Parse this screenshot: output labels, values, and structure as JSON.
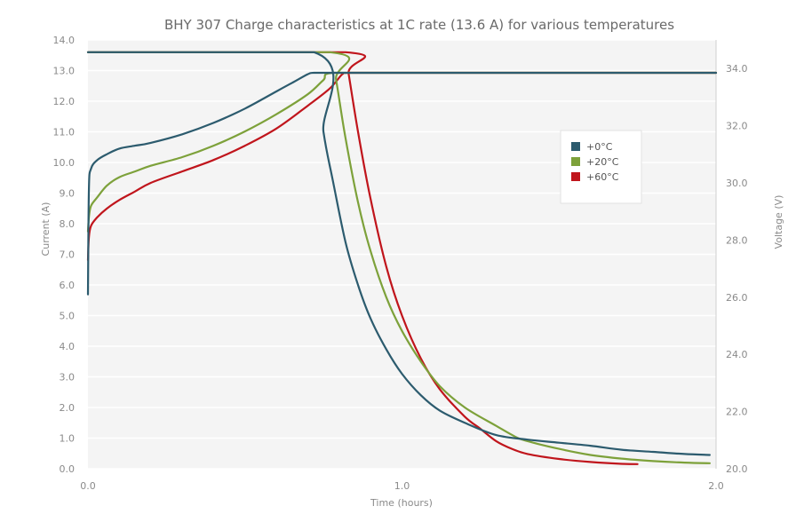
{
  "chart_data": {
    "type": "line",
    "title": "BHY 307 Charge characteristics at 1C rate (13.6 A) for various temperatures",
    "xlabel": "Time (hours)",
    "ylabel_left": "Current (A)",
    "ylabel_right": "Voltage (V)",
    "xlim": [
      0,
      2.0
    ],
    "ylim_left": [
      0,
      14.0
    ],
    "ylim_right": [
      20.0,
      35.0
    ],
    "x_ticks": [
      "0.0",
      "1.0",
      "2.0"
    ],
    "y_ticks_left": [
      "0.0",
      "1.0",
      "2.0",
      "3.0",
      "4.0",
      "5.0",
      "6.0",
      "7.0",
      "8.0",
      "9.0",
      "10.0",
      "11.0",
      "12.0",
      "13.0",
      "14.0"
    ],
    "y_ticks_right": [
      "20.0",
      "22.0",
      "24.0",
      "26.0",
      "28.0",
      "30.0",
      "32.0",
      "34.0"
    ],
    "grid": true,
    "legend_position": "right",
    "series": [
      {
        "name": "+0°C",
        "color": "#2c5b6e",
        "current": [
          [
            0,
            13.6
          ],
          [
            0.72,
            13.6
          ],
          [
            0.75,
            11.0
          ],
          [
            0.78,
            9.4
          ],
          [
            0.82,
            7.4
          ],
          [
            0.86,
            6.0
          ],
          [
            0.9,
            4.9
          ],
          [
            0.95,
            3.9
          ],
          [
            1.0,
            3.1
          ],
          [
            1.06,
            2.4
          ],
          [
            1.12,
            1.9
          ],
          [
            1.2,
            1.5
          ],
          [
            1.3,
            1.1
          ],
          [
            1.4,
            0.95
          ],
          [
            1.5,
            0.85
          ],
          [
            1.6,
            0.75
          ],
          [
            1.7,
            0.62
          ],
          [
            1.8,
            0.55
          ],
          [
            1.9,
            0.48
          ],
          [
            1.98,
            0.45
          ]
        ],
        "voltage": [
          [
            0,
            26.1
          ],
          [
            0.003,
            29.8
          ],
          [
            0.01,
            30.5
          ],
          [
            0.03,
            30.8
          ],
          [
            0.06,
            31.0
          ],
          [
            0.1,
            31.2
          ],
          [
            0.15,
            31.3
          ],
          [
            0.2,
            31.4
          ],
          [
            0.3,
            31.7
          ],
          [
            0.4,
            32.1
          ],
          [
            0.5,
            32.6
          ],
          [
            0.6,
            33.2
          ],
          [
            0.65,
            33.5
          ],
          [
            0.7,
            33.8
          ],
          [
            0.72,
            33.85
          ],
          [
            0.8,
            33.85
          ],
          [
            1.0,
            33.85
          ],
          [
            1.5,
            33.85
          ],
          [
            2.0,
            33.85
          ]
        ]
      },
      {
        "name": "+20°C",
        "color": "#7da13a",
        "current": [
          [
            0,
            13.6
          ],
          [
            0.77,
            13.6
          ],
          [
            0.79,
            12.7
          ],
          [
            0.82,
            10.8
          ],
          [
            0.86,
            8.7
          ],
          [
            0.9,
            7.1
          ],
          [
            0.95,
            5.6
          ],
          [
            1.0,
            4.5
          ],
          [
            1.06,
            3.5
          ],
          [
            1.12,
            2.7
          ],
          [
            1.2,
            2.0
          ],
          [
            1.3,
            1.4
          ],
          [
            1.36,
            1.05
          ],
          [
            1.4,
            0.9
          ],
          [
            1.5,
            0.65
          ],
          [
            1.6,
            0.45
          ],
          [
            1.7,
            0.33
          ],
          [
            1.8,
            0.25
          ],
          [
            1.9,
            0.2
          ],
          [
            1.98,
            0.18
          ]
        ],
        "voltage": [
          [
            0,
            28.3
          ],
          [
            0.003,
            28.8
          ],
          [
            0.01,
            29.2
          ],
          [
            0.03,
            29.5
          ],
          [
            0.06,
            29.9
          ],
          [
            0.1,
            30.2
          ],
          [
            0.15,
            30.4
          ],
          [
            0.2,
            30.6
          ],
          [
            0.3,
            30.9
          ],
          [
            0.4,
            31.3
          ],
          [
            0.5,
            31.8
          ],
          [
            0.6,
            32.4
          ],
          [
            0.7,
            33.1
          ],
          [
            0.75,
            33.6
          ],
          [
            0.78,
            33.85
          ],
          [
            1.0,
            33.85
          ],
          [
            2.0,
            33.85
          ]
        ]
      },
      {
        "name": "+60°C",
        "color": "#c0151c",
        "current": [
          [
            0,
            13.6
          ],
          [
            0.82,
            13.6
          ],
          [
            0.83,
            12.9
          ],
          [
            0.86,
            11.0
          ],
          [
            0.9,
            8.8
          ],
          [
            0.95,
            6.6
          ],
          [
            1.0,
            5.0
          ],
          [
            1.06,
            3.6
          ],
          [
            1.12,
            2.6
          ],
          [
            1.2,
            1.7
          ],
          [
            1.25,
            1.3
          ],
          [
            1.3,
            0.9
          ],
          [
            1.35,
            0.65
          ],
          [
            1.4,
            0.48
          ],
          [
            1.5,
            0.32
          ],
          [
            1.6,
            0.22
          ],
          [
            1.7,
            0.16
          ],
          [
            1.75,
            0.15
          ]
        ],
        "voltage": [
          [
            0,
            27.3
          ],
          [
            0.003,
            28.1
          ],
          [
            0.01,
            28.5
          ],
          [
            0.03,
            28.8
          ],
          [
            0.06,
            29.1
          ],
          [
            0.1,
            29.4
          ],
          [
            0.15,
            29.7
          ],
          [
            0.2,
            30.0
          ],
          [
            0.3,
            30.4
          ],
          [
            0.4,
            30.8
          ],
          [
            0.5,
            31.3
          ],
          [
            0.6,
            31.9
          ],
          [
            0.7,
            32.7
          ],
          [
            0.77,
            33.3
          ],
          [
            0.81,
            33.8
          ],
          [
            0.83,
            33.85
          ],
          [
            1.0,
            33.85
          ],
          [
            2.0,
            33.85
          ]
        ]
      }
    ]
  }
}
